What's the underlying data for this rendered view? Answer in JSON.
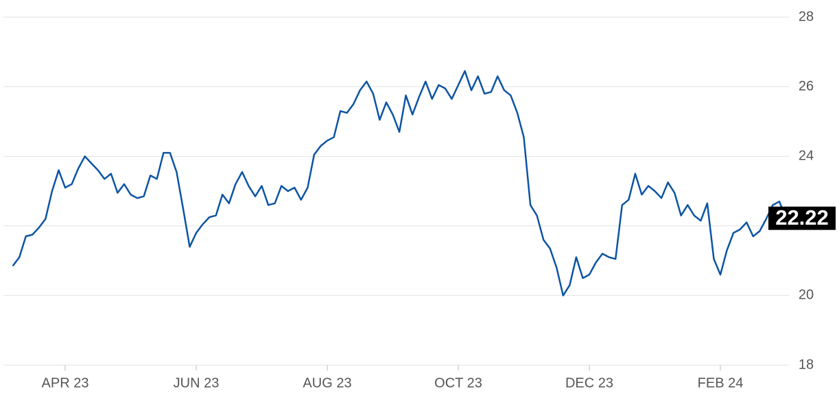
{
  "chart_data": {
    "type": "line",
    "categories": [
      null,
      null,
      null,
      null,
      null,
      null,
      null,
      null,
      "APR 23",
      null,
      null,
      null,
      null,
      null,
      null,
      null,
      null,
      null,
      null,
      null,
      null,
      null,
      null,
      null,
      null,
      null,
      null,
      null,
      "JUN 23",
      null,
      null,
      null,
      null,
      null,
      null,
      null,
      null,
      null,
      null,
      null,
      null,
      null,
      null,
      null,
      null,
      null,
      null,
      null,
      "AUG 23",
      null,
      null,
      null,
      null,
      null,
      null,
      null,
      null,
      null,
      null,
      null,
      null,
      null,
      null,
      null,
      null,
      null,
      null,
      null,
      "OCT 23",
      null,
      null,
      null,
      null,
      null,
      null,
      null,
      null,
      null,
      null,
      null,
      null,
      null,
      null,
      null,
      null,
      null,
      null,
      null,
      "DEC 23",
      null,
      null,
      null,
      null,
      null,
      null,
      null,
      null,
      null,
      null,
      null,
      null,
      null,
      null,
      null,
      null,
      null,
      null,
      null,
      "FEB 24",
      null,
      null,
      null,
      null,
      null,
      null,
      null,
      null,
      null,
      null
    ],
    "values": [
      20.85,
      21.1,
      21.7,
      21.75,
      21.95,
      22.2,
      23.0,
      23.6,
      23.1,
      23.2,
      23.65,
      24.0,
      23.8,
      23.6,
      23.35,
      23.5,
      22.95,
      23.2,
      22.9,
      22.8,
      22.85,
      23.45,
      23.35,
      24.1,
      24.1,
      23.55,
      22.5,
      21.4,
      21.8,
      22.05,
      22.25,
      22.3,
      22.9,
      22.65,
      23.2,
      23.55,
      23.15,
      22.85,
      23.15,
      22.6,
      22.65,
      23.15,
      23.0,
      23.1,
      22.75,
      23.1,
      24.05,
      24.3,
      24.45,
      24.55,
      25.3,
      25.25,
      25.5,
      25.9,
      26.15,
      25.8,
      25.05,
      25.55,
      25.2,
      24.7,
      25.75,
      25.2,
      25.7,
      26.15,
      25.65,
      26.05,
      25.95,
      25.65,
      26.05,
      26.45,
      25.9,
      26.3,
      25.8,
      25.85,
      26.3,
      25.9,
      25.75,
      25.25,
      24.55,
      22.6,
      22.3,
      21.6,
      21.35,
      20.8,
      20.0,
      20.3,
      21.1,
      20.5,
      20.6,
      20.95,
      21.2,
      21.1,
      21.05,
      22.6,
      22.75,
      23.5,
      22.9,
      23.15,
      23.0,
      22.8,
      23.25,
      22.95,
      22.3,
      22.6,
      22.3,
      22.15,
      22.65,
      21.05,
      20.6,
      21.3,
      21.8,
      21.9,
      22.1,
      21.7,
      21.85,
      22.2,
      22.6,
      22.7,
      22.22
    ],
    "color": "#0b54a3",
    "ylim": [
      18,
      28
    ],
    "yticks": [
      18,
      20,
      22,
      24,
      26,
      28
    ],
    "grid": true
  }
}
